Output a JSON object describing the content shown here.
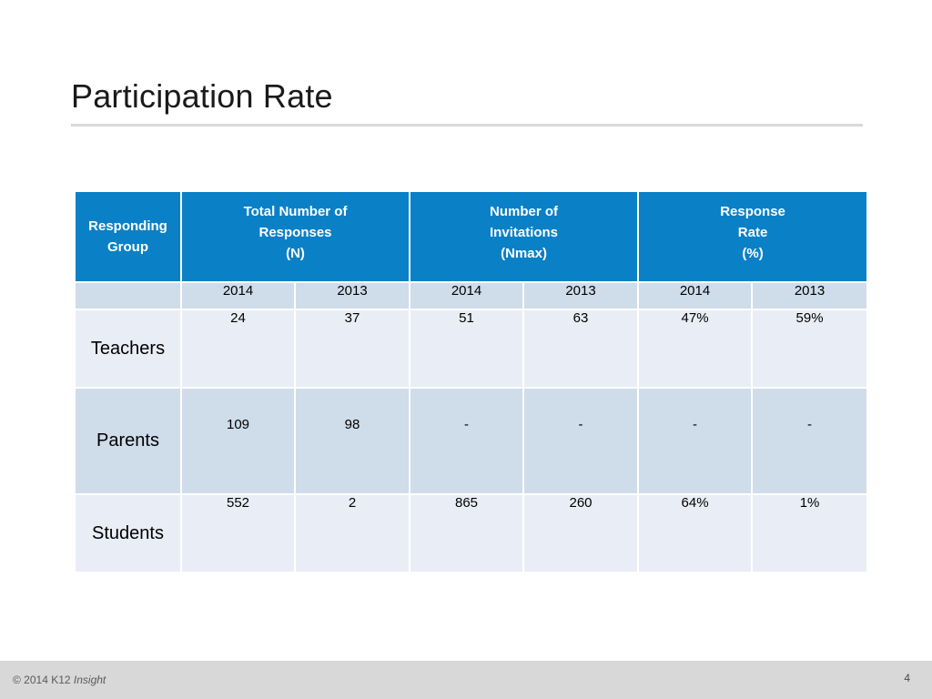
{
  "title": "Participation Rate",
  "table": {
    "headers": {
      "group": "Responding\nGroup",
      "responses": "Total Number of\nResponses\n(N)",
      "invitations": "Number of\nInvitations\n(Nmax)",
      "rate": "Response\nRate\n(%)"
    },
    "years": [
      "2014",
      "2013",
      "2014",
      "2013",
      "2014",
      "2013"
    ],
    "rows": [
      {
        "group": "Teachers",
        "values": [
          "24",
          "37",
          "51",
          "63",
          "47%",
          "59%"
        ]
      },
      {
        "group": "Parents",
        "values": [
          "109",
          "98",
          "-",
          "-",
          "-",
          "-"
        ]
      },
      {
        "group": "Students",
        "values": [
          "552",
          "2",
          "865",
          "260",
          "64%",
          "1%"
        ]
      }
    ]
  },
  "footer": {
    "copyright": "© 2014 K12",
    "brand": "Insight",
    "page_number": "4"
  },
  "colors": {
    "header_blue": "#0a80c6",
    "row_light": "#e9edf5",
    "row_dark": "#cfdcea"
  }
}
